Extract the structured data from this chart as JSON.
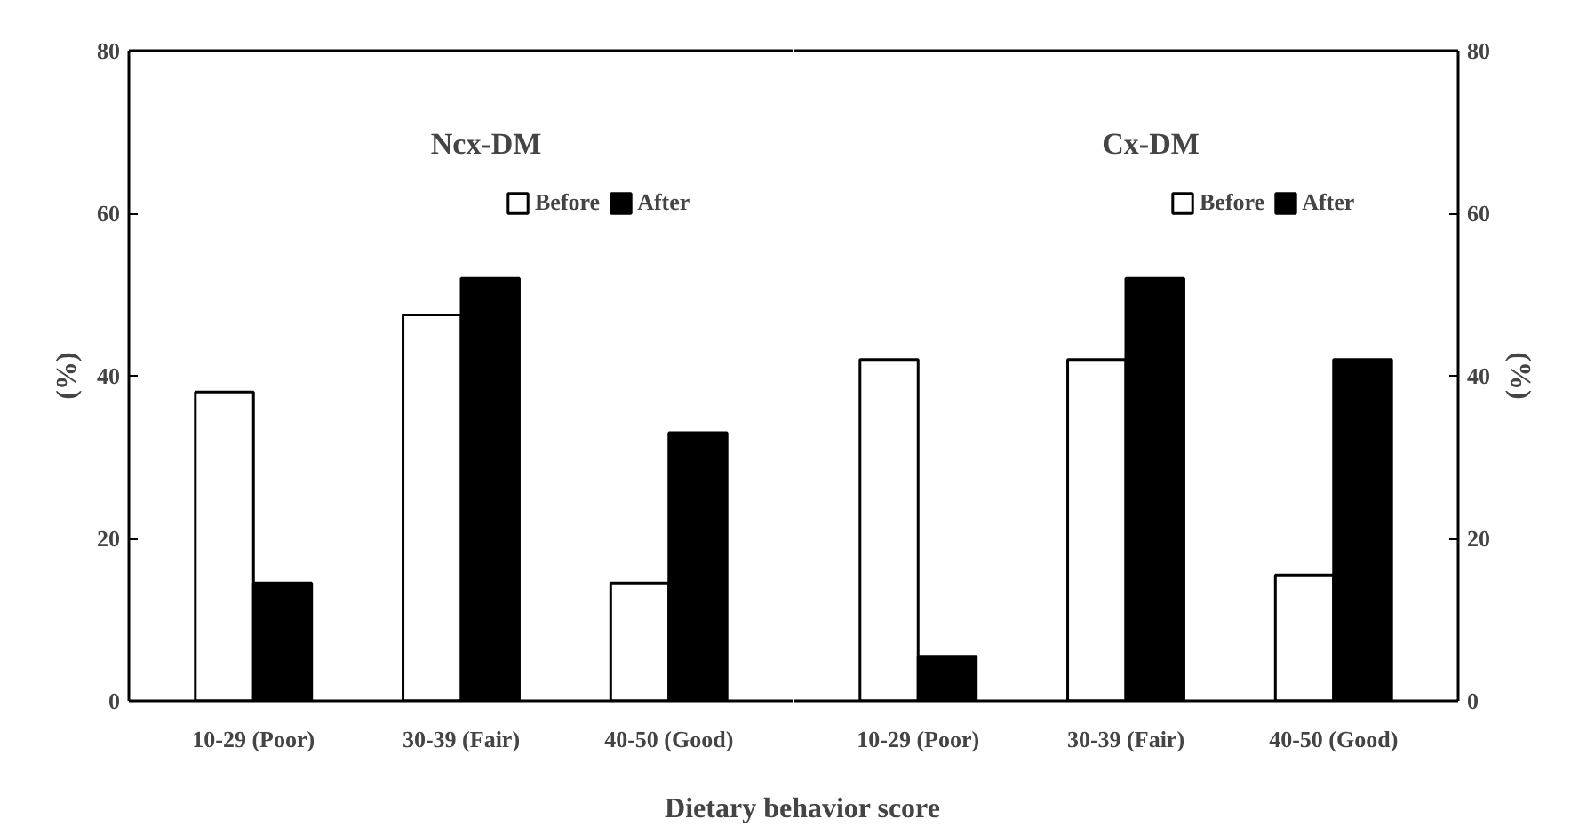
{
  "chart_data": [
    {
      "type": "bar",
      "title": "Ncx-DM",
      "categories": [
        "10-29 (Poor)",
        "30-39 (Fair)",
        "40-50 (Good)"
      ],
      "series": [
        {
          "name": "Before",
          "color": "#ffffff",
          "values": [
            38,
            47.5,
            14.5
          ]
        },
        {
          "name": "After",
          "color": "#000000",
          "values": [
            14.5,
            52,
            33
          ]
        }
      ],
      "xlabel": "Dietary behavior score",
      "ylabel": "(%)",
      "ylim": [
        0,
        80
      ],
      "yticks": [
        0,
        20,
        40,
        60,
        80
      ],
      "legend": "top right",
      "grid": false
    },
    {
      "type": "bar",
      "title": "Cx-DM",
      "categories": [
        "10-29 (Poor)",
        "30-39 (Fair)",
        "40-50 (Good)"
      ],
      "series": [
        {
          "name": "Before",
          "color": "#ffffff",
          "values": [
            42,
            42,
            15.5
          ],
          "axis": "y2"
        },
        {
          "name": "After",
          "color": "#000000",
          "values": [
            5.5,
            52,
            42
          ],
          "axis": "y2"
        }
      ],
      "y2label": "(%)",
      "y2lim": [
        0,
        80
      ],
      "y2ticks": [
        0,
        20,
        40,
        60,
        80
      ],
      "legend": "top right",
      "grid": false
    }
  ]
}
